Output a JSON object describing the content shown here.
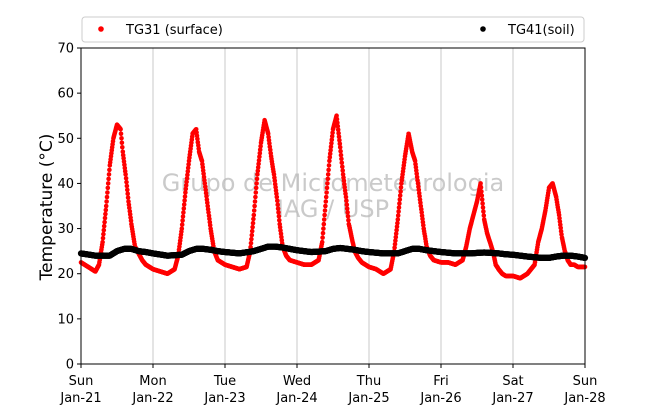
{
  "chart_data": {
    "type": "scatter",
    "ylabel": "Temperature (°C)",
    "xlabel": "",
    "ylim": [
      0,
      70
    ],
    "yticks": [
      0,
      10,
      20,
      30,
      40,
      50,
      60,
      70
    ],
    "xlim": [
      0,
      7
    ],
    "xticks": [
      {
        "day": "Sun",
        "date": "Jan-21",
        "x": 0
      },
      {
        "day": "Mon",
        "date": "Jan-22",
        "x": 1
      },
      {
        "day": "Tue",
        "date": "Jan-23",
        "x": 2
      },
      {
        "day": "Wed",
        "date": "Jan-24",
        "x": 3
      },
      {
        "day": "Thu",
        "date": "Jan-25",
        "x": 4
      },
      {
        "day": "Fri",
        "date": "Jan-26",
        "x": 5
      },
      {
        "day": "Sat",
        "date": "Jan-27",
        "x": 6
      },
      {
        "day": "Sun",
        "date": "Jan-28",
        "x": 7
      }
    ],
    "grid": "vertical",
    "legend_position": "top",
    "watermark": [
      "Grupo de Micrometeorologia",
      "IAG / USP"
    ],
    "series": [
      {
        "name": "TG31 (surface)",
        "color": "#ff0000",
        "x": [
          0.0,
          0.1,
          0.2,
          0.25,
          0.3,
          0.35,
          0.4,
          0.45,
          0.5,
          0.55,
          0.58,
          0.62,
          0.66,
          0.7,
          0.75,
          0.8,
          0.85,
          0.9,
          1.0,
          1.1,
          1.2,
          1.3,
          1.35,
          1.4,
          1.45,
          1.5,
          1.55,
          1.6,
          1.64,
          1.68,
          1.72,
          1.76,
          1.8,
          1.85,
          1.9,
          2.0,
          2.1,
          2.2,
          2.3,
          2.35,
          2.4,
          2.45,
          2.5,
          2.55,
          2.6,
          2.64,
          2.68,
          2.72,
          2.76,
          2.8,
          2.85,
          2.9,
          3.0,
          3.1,
          3.2,
          3.3,
          3.35,
          3.4,
          3.45,
          3.5,
          3.55,
          3.6,
          3.64,
          3.68,
          3.72,
          3.76,
          3.8,
          3.85,
          3.9,
          4.0,
          4.1,
          4.2,
          4.3,
          4.35,
          4.4,
          4.45,
          4.5,
          4.55,
          4.6,
          4.64,
          4.68,
          4.72,
          4.76,
          4.8,
          4.85,
          4.9,
          5.0,
          5.1,
          5.2,
          5.3,
          5.35,
          5.4,
          5.45,
          5.5,
          5.55,
          5.6,
          5.64,
          5.68,
          5.72,
          5.76,
          5.8,
          5.85,
          5.9,
          6.0,
          6.1,
          6.2,
          6.3,
          6.35,
          6.4,
          6.45,
          6.5,
          6.55,
          6.6,
          6.64,
          6.68,
          6.72,
          6.76,
          6.8,
          6.85,
          6.9,
          7.0
        ],
        "y": [
          22.5,
          21.5,
          20.5,
          22,
          27,
          35,
          44,
          50,
          53,
          52,
          47,
          42,
          36,
          31,
          26,
          24.5,
          23,
          22,
          21,
          20.5,
          20,
          21,
          24,
          30,
          38,
          45,
          51,
          52,
          47,
          45,
          40,
          35,
          30,
          25,
          23,
          22,
          21.5,
          21,
          21.5,
          25,
          33,
          42,
          49,
          54,
          51,
          46,
          42,
          37,
          31,
          26,
          24,
          23,
          22.5,
          22,
          22,
          23,
          27,
          36,
          45,
          52,
          55,
          48,
          42,
          37,
          31,
          28,
          25,
          23.5,
          22.5,
          21.5,
          21,
          20,
          21,
          25,
          32,
          40,
          46,
          51,
          47,
          45,
          40,
          35,
          30,
          26,
          24,
          23,
          22.5,
          22.5,
          22,
          23,
          26,
          30,
          33,
          36,
          40,
          32,
          29,
          27,
          25,
          22,
          21,
          20,
          19.5,
          19.5,
          19,
          20,
          22,
          27,
          30,
          34,
          39,
          40,
          37,
          33,
          28,
          25,
          23,
          22,
          22,
          21.5,
          21.5
        ]
      },
      {
        "name": "TG41(soil)",
        "color": "#000000",
        "x": [
          0.0,
          0.2,
          0.4,
          0.5,
          0.6,
          0.7,
          0.8,
          0.9,
          1.0,
          1.2,
          1.4,
          1.5,
          1.6,
          1.7,
          1.8,
          1.9,
          2.0,
          2.2,
          2.4,
          2.5,
          2.6,
          2.7,
          2.8,
          2.9,
          3.0,
          3.2,
          3.4,
          3.5,
          3.6,
          3.7,
          3.8,
          3.9,
          4.0,
          4.2,
          4.4,
          4.5,
          4.6,
          4.7,
          4.8,
          4.9,
          5.0,
          5.2,
          5.4,
          5.5,
          5.6,
          5.7,
          5.8,
          5.9,
          6.0,
          6.2,
          6.4,
          6.5,
          6.6,
          6.7,
          6.8,
          6.9,
          7.0
        ],
        "y": [
          24.5,
          24,
          24,
          25,
          25.5,
          25.5,
          25,
          24.8,
          24.5,
          24,
          24.2,
          25,
          25.5,
          25.5,
          25.3,
          25,
          24.8,
          24.5,
          25,
          25.5,
          26,
          26,
          25.8,
          25.5,
          25.2,
          24.8,
          25,
          25.5,
          25.7,
          25.5,
          25.3,
          25,
          24.8,
          24.5,
          24.5,
          25,
          25.5,
          25.5,
          25.2,
          25,
          24.8,
          24.5,
          24.5,
          24.6,
          24.7,
          24.6,
          24.5,
          24.3,
          24.2,
          23.8,
          23.5,
          23.5,
          23.8,
          24,
          24,
          23.8,
          23.5
        ]
      }
    ]
  }
}
